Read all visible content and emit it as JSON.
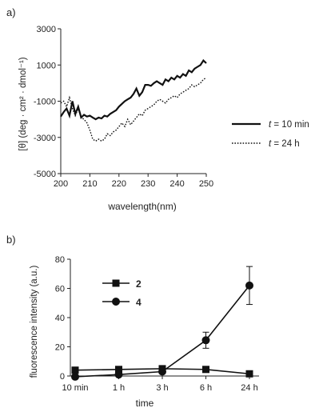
{
  "chart_data": [
    {
      "panel_label": "a)",
      "type": "line",
      "xlabel": "wavelength(nm)",
      "ylabel": "[θ] (deg · cm² · dmol⁻¹)",
      "xlim": [
        200,
        250
      ],
      "ylim": [
        -5000,
        3000
      ],
      "xticks": [
        "200",
        "210",
        "220",
        "230",
        "240",
        "250"
      ],
      "yticks": [
        "3000",
        "1000",
        "-1000",
        "-3000",
        "-5000"
      ],
      "legend_position": "right",
      "series": [
        {
          "name": "t = 10 min",
          "legend_var": "t",
          "legend_rest": " = 10 min",
          "style": "solid",
          "x": [
            200,
            201,
            202,
            203,
            204,
            205,
            206,
            207,
            208,
            209,
            210,
            211,
            212,
            213,
            214,
            215,
            216,
            217,
            218,
            219,
            220,
            221,
            222,
            223,
            224,
            225,
            226,
            227,
            228,
            229,
            230,
            231,
            232,
            233,
            234,
            235,
            236,
            237,
            238,
            239,
            240,
            241,
            242,
            243,
            244,
            245,
            246,
            247,
            248,
            249,
            250
          ],
          "y": [
            -1850,
            -1600,
            -1400,
            -1800,
            -1000,
            -1700,
            -1300,
            -1900,
            -1750,
            -1850,
            -1800,
            -1900,
            -2000,
            -1900,
            -1950,
            -1800,
            -1850,
            -1700,
            -1600,
            -1500,
            -1300,
            -1150,
            -1000,
            -900,
            -800,
            -600,
            -300,
            -700,
            -500,
            -100,
            -100,
            -150,
            0,
            100,
            0,
            -100,
            200,
            100,
            300,
            200,
            400,
            300,
            500,
            400,
            700,
            600,
            800,
            900,
            1000,
            1250,
            1100
          ]
        },
        {
          "name": "t = 24 h",
          "legend_var": "t",
          "legend_rest": " = 24 h",
          "style": "dotted",
          "x": [
            200,
            201,
            202,
            203,
            204,
            205,
            206,
            207,
            208,
            209,
            210,
            211,
            212,
            213,
            214,
            215,
            216,
            217,
            218,
            219,
            220,
            221,
            222,
            223,
            224,
            225,
            226,
            227,
            228,
            229,
            230,
            231,
            232,
            233,
            234,
            235,
            236,
            237,
            238,
            239,
            240,
            241,
            242,
            243,
            244,
            245,
            246,
            247,
            248,
            249,
            250
          ],
          "y": [
            -1100,
            -1000,
            -1300,
            -800,
            -1400,
            -1800,
            -1400,
            -1900,
            -2000,
            -2200,
            -2600,
            -3100,
            -3200,
            -3100,
            -3200,
            -3100,
            -2800,
            -2900,
            -2700,
            -2600,
            -2400,
            -2200,
            -2400,
            -2000,
            -2300,
            -2100,
            -1900,
            -1700,
            -1800,
            -1500,
            -1400,
            -1300,
            -1200,
            -1000,
            -900,
            -1000,
            -1100,
            -900,
            -800,
            -700,
            -800,
            -600,
            -500,
            -400,
            -300,
            -100,
            -200,
            -100,
            0,
            200,
            300
          ]
        }
      ]
    },
    {
      "panel_label": "b)",
      "type": "line",
      "xlabel": "time",
      "ylabel": "fluorescence intensity (a.u.)",
      "categories": [
        "10 min",
        "1 h",
        "3 h",
        "6 h",
        "24 h"
      ],
      "ylim": [
        0,
        80
      ],
      "yticks": [
        "0",
        "20",
        "40",
        "60",
        "80"
      ],
      "legend_position": "top-left",
      "series": [
        {
          "name": "2",
          "marker": "square",
          "values": [
            4,
            4.5,
            5,
            4.5,
            1.5
          ],
          "errors": [
            0,
            0,
            0,
            0,
            0
          ]
        },
        {
          "name": "4",
          "marker": "circle",
          "values": [
            -0.5,
            1,
            3,
            24.5,
            62
          ],
          "errors": [
            0,
            0,
            0,
            5.5,
            13
          ]
        }
      ]
    }
  ]
}
